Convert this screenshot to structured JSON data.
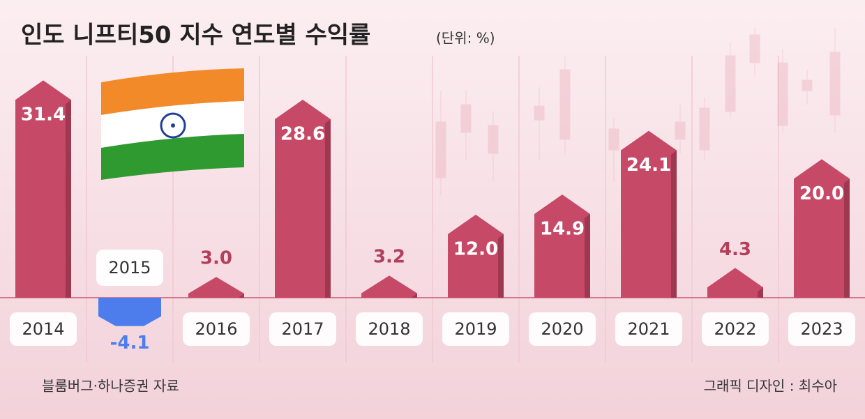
{
  "chart_data": {
    "type": "bar",
    "title": "인도 니프티50 지수 연도별 수익률",
    "unit": "(단위: %)",
    "categories": [
      "2014",
      "2015",
      "2016",
      "2017",
      "2018",
      "2019",
      "2020",
      "2021",
      "2022",
      "2023"
    ],
    "values": [
      31.4,
      -4.1,
      3.0,
      28.6,
      3.2,
      12.0,
      14.9,
      24.1,
      4.3,
      20.0
    ],
    "value_labels": [
      "31.4",
      "-4.1",
      "3.0",
      "28.6",
      "3.2",
      "12.0",
      "14.9",
      "24.1",
      "4.3",
      "20.0"
    ],
    "color": "#c64a68",
    "negative_color": "#4d7ded",
    "source": "블룸버그·하나증권 자료",
    "credit": "그래픽 디자인 : 최수아"
  }
}
